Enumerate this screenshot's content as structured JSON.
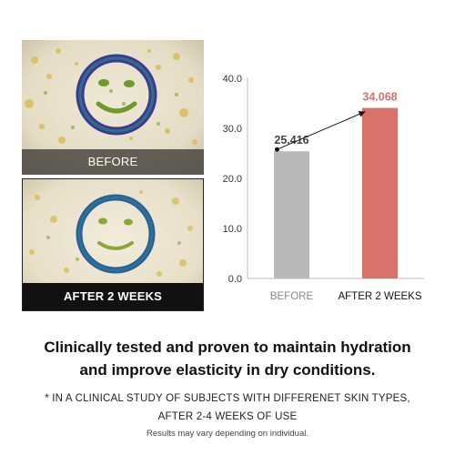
{
  "photos": {
    "before_label": "BEFORE",
    "after_label": "AFTER 2 WEEKS"
  },
  "chart_data": {
    "type": "bar",
    "categories": [
      "BEFORE",
      "AFTER 2 WEEKS"
    ],
    "values": [
      25.416,
      34.068
    ],
    "value_labels": [
      "25.416",
      "34.068"
    ],
    "ylim": [
      0,
      40
    ],
    "yticks": [
      "0.0",
      "10.0",
      "20.0",
      "30.0",
      "40.0"
    ],
    "ytick_values": [
      0,
      10,
      20,
      30,
      40
    ],
    "colors": [
      "#b9b9b9",
      "#d9726b"
    ],
    "label_colors": [
      "#444444",
      "#d9726b"
    ],
    "grid": false,
    "arrow": true
  },
  "headline": {
    "line1": "Clinically tested and proven to maintain hydration",
    "line2": "and improve elasticity in dry conditions."
  },
  "footnote": {
    "line1": "* IN A CLINICAL STUDY OF SUBJECTS WITH DIFFERENET SKIN TYPES,",
    "line2": "AFTER 2-4 WEEKS OF USE"
  },
  "disclaimer": "Results may vary depending on individual."
}
